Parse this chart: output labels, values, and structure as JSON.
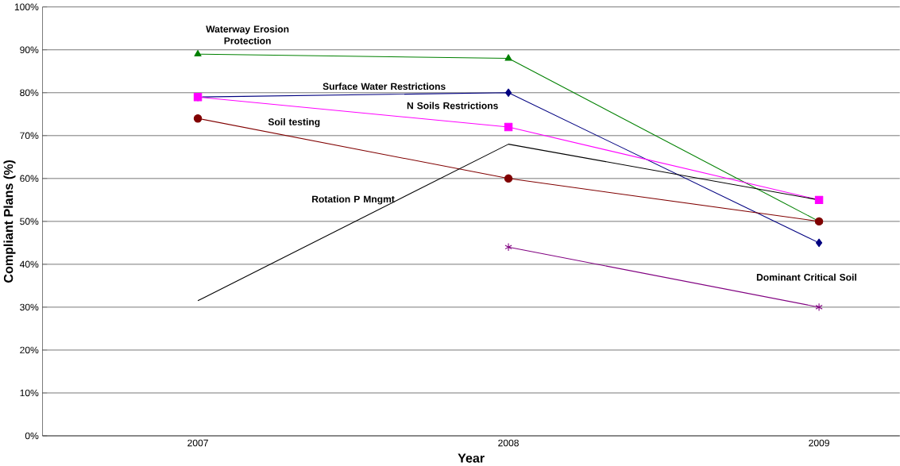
{
  "chart_data": {
    "type": "line",
    "xlabel": "Year",
    "ylabel": "Compliant Plans (%)",
    "categories": [
      "2007",
      "2008",
      "2009"
    ],
    "ylim": [
      0,
      100
    ],
    "yticks": [
      {
        "value": 0,
        "label": "0%"
      },
      {
        "value": 10,
        "label": "10%"
      },
      {
        "value": 20,
        "label": "20%"
      },
      {
        "value": 30,
        "label": "30%"
      },
      {
        "value": 40,
        "label": "40%"
      },
      {
        "value": 50,
        "label": "50%"
      },
      {
        "value": 60,
        "label": "60%"
      },
      {
        "value": 70,
        "label": "70%"
      },
      {
        "value": 80,
        "label": "80%"
      },
      {
        "value": 90,
        "label": "90%"
      },
      {
        "value": 100,
        "label": "100%"
      }
    ],
    "grid": "y",
    "series": [
      {
        "name": "Waterway Erosion Protection",
        "color": "#008000",
        "marker": "triangle",
        "values": [
          89,
          88,
          50
        ]
      },
      {
        "name": "Surface Water Restrictions",
        "color": "#000080",
        "marker": "diamond",
        "values": [
          79,
          80,
          45
        ]
      },
      {
        "name": "N Soils Restrictions",
        "color": "#ff00ff",
        "marker": "square",
        "values": [
          79,
          72,
          55
        ]
      },
      {
        "name": "Soil testing",
        "color": "#800000",
        "marker": "circle",
        "values": [
          74,
          60,
          50
        ]
      },
      {
        "name": "Rotation P Mngmt",
        "color": "#000000",
        "marker": "none",
        "values": [
          31.5,
          68,
          55
        ]
      },
      {
        "name": "Dominant Critical Soil",
        "color": "#800080",
        "marker": "cross",
        "values": [
          null,
          44,
          30
        ]
      }
    ]
  }
}
